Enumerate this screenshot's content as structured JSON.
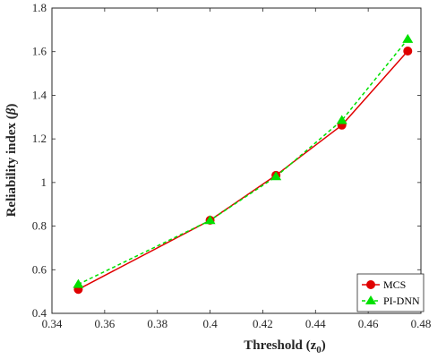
{
  "chart_data": {
    "type": "line",
    "xlabel": "Threshold (z",
    "xlabel_sub": "0",
    "xlabel_end": ")",
    "ylabel": "Reliability index (",
    "ylabel_symbol": "β",
    "ylabel_end": ")",
    "xlim": [
      0.34,
      0.48
    ],
    "ylim": [
      0.4,
      1.8
    ],
    "xticks": [
      0.34,
      0.36,
      0.38,
      0.4,
      0.42,
      0.44,
      0.46,
      0.48
    ],
    "xtick_labels": [
      "0.34",
      "0.36",
      "0.38",
      "0.4",
      "0.42",
      "0.44",
      "0.46",
      "0.48"
    ],
    "yticks": [
      0.4,
      0.6,
      0.8,
      1.0,
      1.2,
      1.4,
      1.6,
      1.8
    ],
    "ytick_labels": [
      "0.4",
      "0.6",
      "0.8",
      "1",
      "1.2",
      "1.4",
      "1.6",
      "1.8"
    ],
    "grid": false,
    "legend_position": "bottom-right",
    "series": [
      {
        "name": "MCS",
        "color": "#e00000",
        "line_style": "solid",
        "marker": "circle",
        "x": [
          0.35,
          0.4,
          0.425,
          0.45,
          0.475
        ],
        "y": [
          0.51,
          0.827,
          1.033,
          1.263,
          1.603
        ]
      },
      {
        "name": "PI-DNN",
        "color": "#00e000",
        "line_style": "dashed",
        "marker": "triangle",
        "x": [
          0.35,
          0.4,
          0.425,
          0.45,
          0.475
        ],
        "y": [
          0.533,
          0.826,
          1.027,
          1.285,
          1.657
        ]
      }
    ]
  }
}
